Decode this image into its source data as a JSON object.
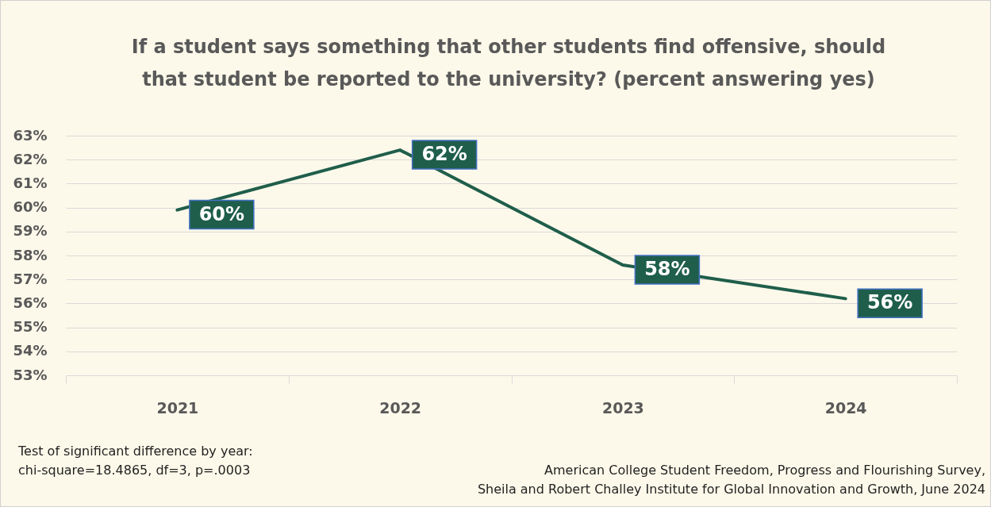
{
  "chart_data": {
    "type": "line",
    "title": "If a student says something that other students find offensive, should that student be reported to the university? (percent answering yes)",
    "categories": [
      "2021",
      "2022",
      "2023",
      "2024"
    ],
    "series": [
      {
        "color": "#1f5e4b",
        "values": [
          59.9,
          62.4,
          57.6,
          56.2
        ],
        "value_labels": [
          "60%",
          "62%",
          "58%",
          "56%"
        ]
      }
    ],
    "ylim": [
      53,
      63
    ],
    "yticks": [
      {
        "value": 53,
        "label": "53%"
      },
      {
        "value": 54,
        "label": "54%"
      },
      {
        "value": 55,
        "label": "55%"
      },
      {
        "value": 56,
        "label": "56%"
      },
      {
        "value": 57,
        "label": "57%"
      },
      {
        "value": 58,
        "label": "58%"
      },
      {
        "value": 59,
        "label": "59%"
      },
      {
        "value": 60,
        "label": "60%"
      },
      {
        "value": 61,
        "label": "61%"
      },
      {
        "value": 62,
        "label": "62%"
      },
      {
        "value": 63,
        "label": "63%"
      }
    ],
    "grid": "y",
    "line_style": "solid",
    "annotations": [
      "Test of significant difference by year:\nchi-square=18.4865, df=3, p=.0003",
      "American College Student Freedom, Progress and Flourishing Survey,\nSheila and Robert Challey Institute for Global Innovation and Growth, June 2024"
    ]
  }
}
